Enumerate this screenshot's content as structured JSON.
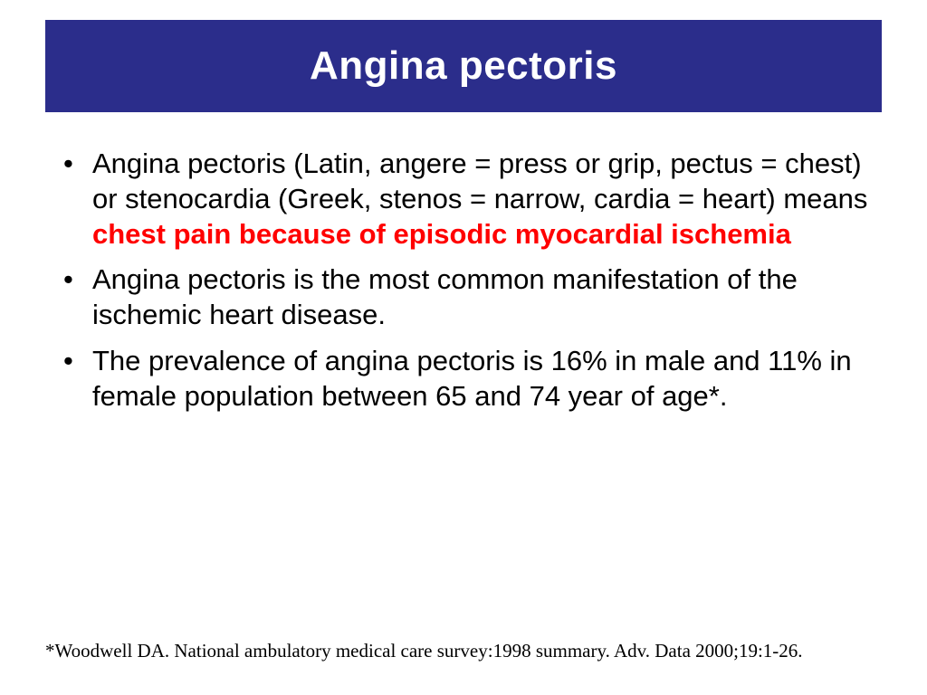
{
  "slide": {
    "title": "Angina pectoris",
    "title_bar_color": "#2b2d8b",
    "title_text_color": "#ffffff",
    "highlight_color": "#ff0000",
    "body_text_color": "#000000",
    "background_color": "#ffffff",
    "bullets": [
      {
        "pre": "Angina pectoris (Latin, angere = press or grip, pectus = chest) or stenocardia (Greek, stenos = narrow, cardia = heart) means ",
        "highlight": "chest pain because of episodic myocardial ischemia",
        "post": ""
      },
      {
        "pre": "Angina pectoris is the most common manifestation of the ischemic heart disease.",
        "highlight": "",
        "post": ""
      },
      {
        "pre": "The prevalence of angina pectoris is 16% in male and 11% in female population between 65 and 74 year of age*.",
        "highlight": "",
        "post": ""
      }
    ],
    "footnote": "*Woodwell DA. National ambulatory medical care survey:1998 summary.  Adv. Data 2000;19:1-26."
  }
}
